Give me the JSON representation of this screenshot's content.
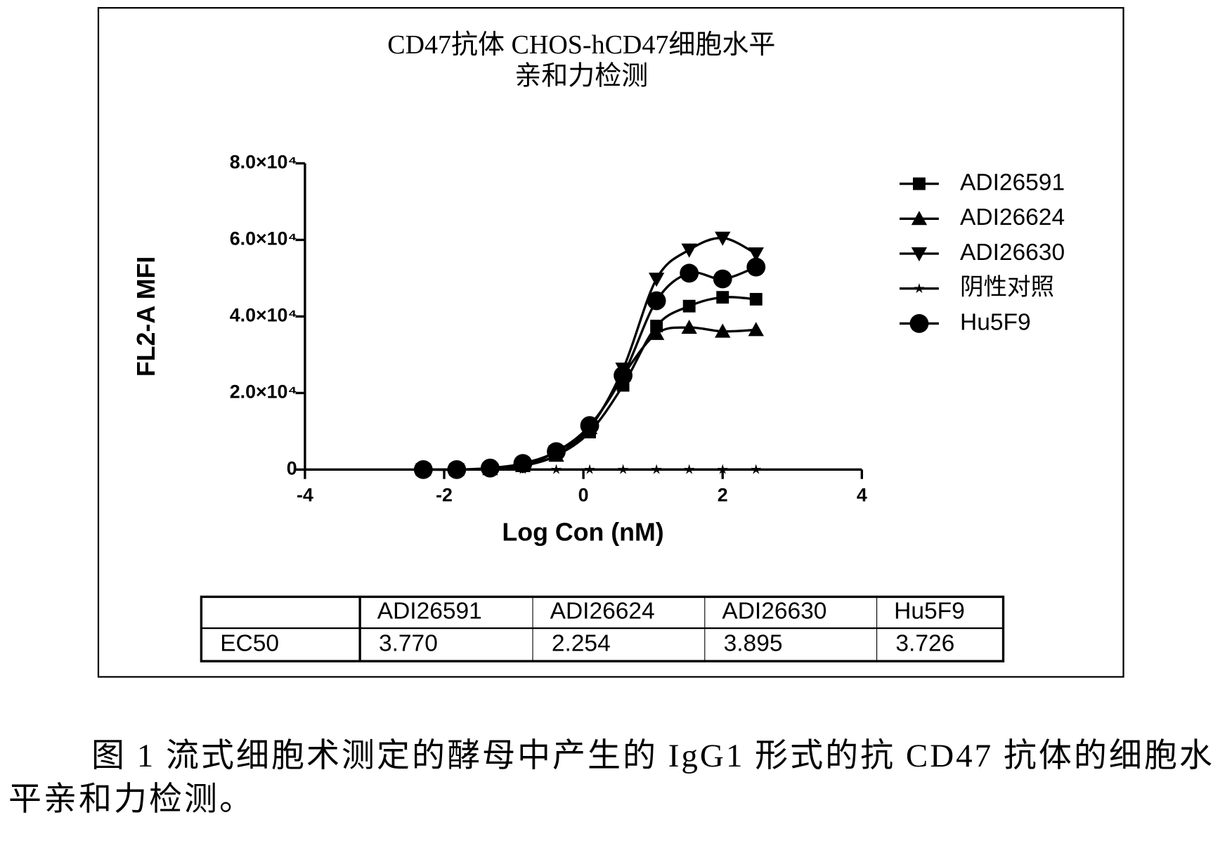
{
  "chart_data": {
    "type": "line",
    "title": "CD47抗体 CHOS-hCD47细胞水平",
    "subtitle": "亲和力检测",
    "x_label": "Log Con (nM)",
    "y_label": "FL2-A MFI",
    "xlim": [
      -4,
      4
    ],
    "xticks": [
      -4,
      -2,
      0,
      2,
      4
    ],
    "ylim": [
      0,
      80000
    ],
    "yticks": [
      0,
      {
        "value": 20000,
        "label": "2.0×10⁴"
      },
      {
        "value": 40000,
        "label": "4.0×10⁴"
      },
      {
        "value": 60000,
        "label": "6.0×10⁴"
      },
      {
        "value": 80000,
        "label": "8.0×10⁴"
      }
    ],
    "x": [
      -2.3,
      -1.82,
      -1.34,
      -0.87,
      -0.39,
      0.09,
      0.57,
      1.05,
      1.52,
      2.0,
      2.48
    ],
    "series": [
      {
        "name": "ADI26591",
        "color": "#000000",
        "marker": "square",
        "values": [
          0,
          0,
          200,
          1000,
          3700,
          9800,
          22000,
          37500,
          42700,
          45000,
          44500
        ]
      },
      {
        "name": "ADI26624",
        "color": "#000000",
        "marker": "triangle",
        "values": [
          0,
          0,
          200,
          1000,
          3700,
          10900,
          24600,
          35500,
          37100,
          36100,
          36500
        ]
      },
      {
        "name": "ADI26630",
        "color": "#000000",
        "marker": "triangle-down",
        "values": [
          0,
          0,
          200,
          1000,
          4700,
          10900,
          26300,
          49800,
          57400,
          60500,
          56400
        ]
      },
      {
        "name": "阴性对照",
        "color": "#000000",
        "marker": "star",
        "values": [
          0,
          0,
          0,
          0,
          0,
          0,
          0,
          0,
          0,
          0,
          0
        ]
      },
      {
        "name": "Hu5F9",
        "color": "#000000",
        "marker": "circle",
        "values": [
          0,
          0,
          400,
          1600,
          4700,
          11500,
          24600,
          44100,
          51300,
          49800,
          52900
        ]
      }
    ]
  },
  "table": {
    "header": [
      "ADI26591",
      "ADI26624",
      "ADI26630",
      "Hu5F9"
    ],
    "rows": [
      [
        "EC50",
        "3.770",
        "2.254",
        "3.895",
        "3.726"
      ]
    ]
  },
  "caption": "图 1 流式细胞术测定的酵母中产生的 IgG1 形式的抗 CD47 抗体的细胞水平亲和力检测。"
}
